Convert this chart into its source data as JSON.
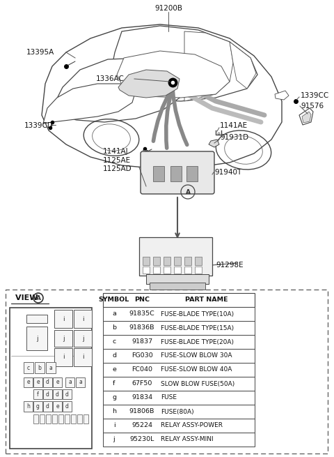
{
  "bg_color": "#ffffff",
  "text_color": "#111111",
  "label_fontsize": 7.0,
  "table_fontsize": 6.8,
  "table_symbols": [
    "a",
    "b",
    "c",
    "d",
    "e",
    "f",
    "g",
    "h",
    "i",
    "j"
  ],
  "table_pnc": [
    "91835C",
    "91836B",
    "91837",
    "FG030",
    "FC040",
    "67F50",
    "91834",
    "91806B",
    "95224",
    "95230L"
  ],
  "table_parts": [
    "FUSE-BLADE TYPE(10A)",
    "FUSE-BLADE TYPE(15A)",
    "FUSE-BLADE TYPE(20A)",
    "FUSE-SLOW BLOW 30A",
    "FUSE-SLOW BLOW 40A",
    "SLOW BLOW FUSE(50A)",
    "FUSE",
    "FUSE(80A)",
    "RELAY ASSY-POWER",
    "RELAY ASSY-MINI"
  ]
}
